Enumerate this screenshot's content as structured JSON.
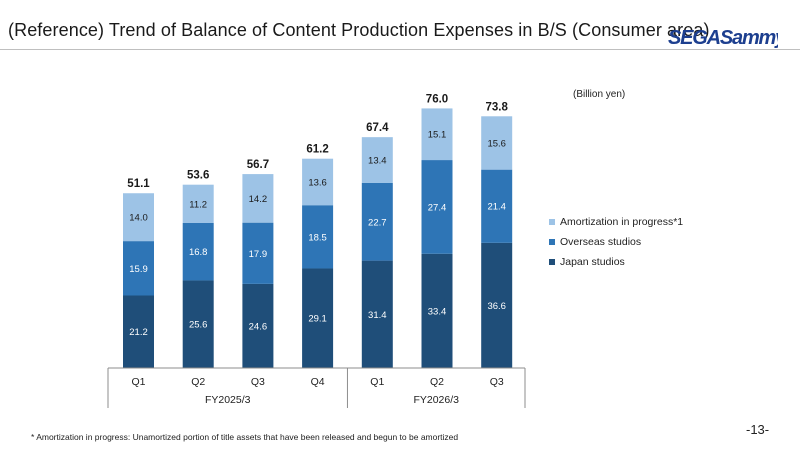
{
  "header": {
    "title": "(Reference) Trend of Balance of Content Production Expenses in B/S (Consumer area)",
    "logo_text": "SEGASammy"
  },
  "unit_label": "(Billion yen)",
  "footnote": "* Amortization in progress: Unamortized portion of title assets that have been released and begun to be amortized",
  "page_number": "-13-",
  "colors": {
    "japan": "#1f4e79",
    "overseas": "#2e75b6",
    "amortization": "#9dc3e6",
    "logo_blue": "#1d3f8f"
  },
  "chart_data": {
    "type": "bar",
    "stacked": true,
    "categories": [
      "Q1",
      "Q2",
      "Q3",
      "Q4",
      "Q1",
      "Q2",
      "Q3"
    ],
    "groups": [
      {
        "label": "FY2025/3",
        "categories": [
          "Q1",
          "Q2",
          "Q3",
          "Q4"
        ]
      },
      {
        "label": "FY2026/3",
        "categories": [
          "Q1",
          "Q2",
          "Q3"
        ]
      }
    ],
    "series": [
      {
        "name": "Japan studios",
        "values": [
          21.2,
          25.6,
          24.6,
          29.1,
          31.4,
          33.4,
          36.6
        ]
      },
      {
        "name": "Overseas studios",
        "values": [
          15.9,
          16.8,
          17.9,
          18.5,
          22.7,
          27.4,
          21.4
        ]
      },
      {
        "name": "Amortization in progress*1",
        "values": [
          14.0,
          11.2,
          14.2,
          13.6,
          13.4,
          15.1,
          15.6
        ]
      }
    ],
    "totals": [
      "51.1",
      "53.6",
      "56.7",
      "61.2",
      "67.4",
      "76.0",
      "73.8"
    ],
    "ylim": [
      0,
      80
    ],
    "grid": false,
    "legend_position": "right",
    "legend_order": [
      "Amortization in progress*1",
      "Overseas studios",
      "Japan studios"
    ]
  }
}
